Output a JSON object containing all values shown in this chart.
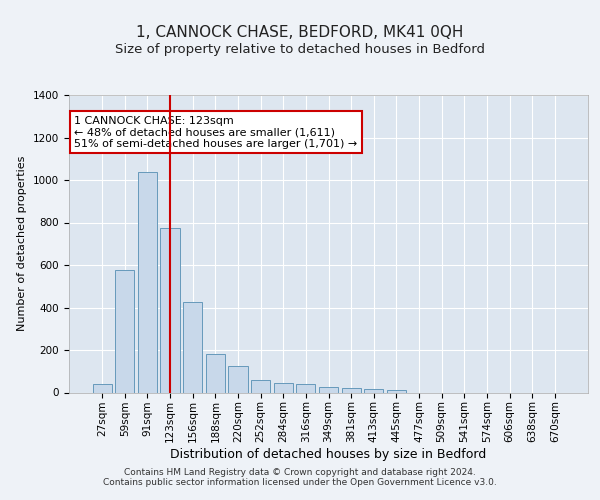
{
  "title": "1, CANNOCK CHASE, BEDFORD, MK41 0QH",
  "subtitle": "Size of property relative to detached houses in Bedford",
  "xlabel": "Distribution of detached houses by size in Bedford",
  "ylabel": "Number of detached properties",
  "categories": [
    "27sqm",
    "59sqm",
    "91sqm",
    "123sqm",
    "156sqm",
    "188sqm",
    "220sqm",
    "252sqm",
    "284sqm",
    "316sqm",
    "349sqm",
    "381sqm",
    "413sqm",
    "445sqm",
    "477sqm",
    "509sqm",
    "541sqm",
    "574sqm",
    "606sqm",
    "638sqm",
    "670sqm"
  ],
  "values": [
    40,
    575,
    1040,
    775,
    425,
    180,
    125,
    60,
    47,
    42,
    25,
    22,
    18,
    10,
    0,
    0,
    0,
    0,
    0,
    0,
    0
  ],
  "bar_color": "#c8d8ea",
  "bar_edge_color": "#6699bb",
  "highlight_index": 3,
  "highlight_line_color": "#cc0000",
  "annotation_text": "1 CANNOCK CHASE: 123sqm\n← 48% of detached houses are smaller (1,611)\n51% of semi-detached houses are larger (1,701) →",
  "annotation_box_color": "#ffffff",
  "annotation_box_edge_color": "#cc0000",
  "ylim": [
    0,
    1400
  ],
  "yticks": [
    0,
    200,
    400,
    600,
    800,
    1000,
    1200,
    1400
  ],
  "background_color": "#eef2f7",
  "plot_bg_color": "#dde6f0",
  "footer_text": "Contains HM Land Registry data © Crown copyright and database right 2024.\nContains public sector information licensed under the Open Government Licence v3.0.",
  "title_fontsize": 11,
  "subtitle_fontsize": 9.5,
  "xlabel_fontsize": 9,
  "ylabel_fontsize": 8,
  "tick_fontsize": 7.5,
  "annotation_fontsize": 8,
  "footer_fontsize": 6.5
}
